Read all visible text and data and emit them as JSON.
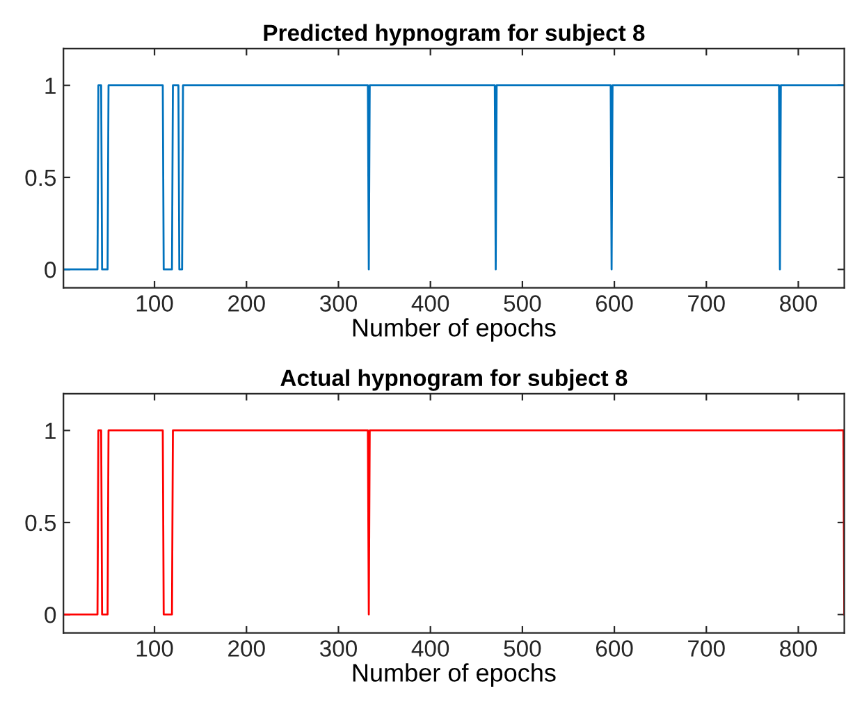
{
  "chart_data": [
    {
      "type": "line",
      "title": "Predicted hypnogram for subject 8",
      "xlabel": "Number of epochs",
      "xlim": [
        1,
        850
      ],
      "xticks": [
        100,
        200,
        300,
        400,
        500,
        600,
        700,
        800
      ],
      "ylim": [
        -0.1,
        1.2
      ],
      "yticks": [
        0,
        0.5,
        1
      ],
      "grid": false,
      "legend": false,
      "series": [
        {
          "color": "#0072bd",
          "x": [
            1,
            38,
            39,
            42,
            43,
            49,
            50,
            109,
            110,
            119,
            120,
            126,
            127,
            130,
            131,
            332,
            333,
            334,
            470,
            471,
            472,
            596,
            597,
            598,
            779,
            780,
            781,
            850
          ],
          "values": [
            0,
            0,
            1,
            1,
            0,
            0,
            1,
            1,
            0,
            0,
            1,
            1,
            0,
            0,
            1,
            1,
            0,
            1,
            1,
            0,
            1,
            1,
            0,
            1,
            1,
            0,
            1,
            1
          ]
        }
      ]
    },
    {
      "type": "line",
      "title": "Actual hypnogram for subject 8",
      "xlabel": "Number of epochs",
      "xlim": [
        1,
        850
      ],
      "xticks": [
        100,
        200,
        300,
        400,
        500,
        600,
        700,
        800
      ],
      "ylim": [
        -0.1,
        1.2
      ],
      "yticks": [
        0,
        0.5,
        1
      ],
      "grid": false,
      "legend": false,
      "series": [
        {
          "color": "#ff0000",
          "x": [
            1,
            38,
            39,
            42,
            43,
            49,
            50,
            109,
            110,
            119,
            120,
            332,
            333,
            334,
            849,
            850
          ],
          "values": [
            0,
            0,
            1,
            1,
            0,
            0,
            1,
            1,
            0,
            0,
            1,
            1,
            0,
            1,
            1,
            0
          ]
        }
      ]
    }
  ]
}
